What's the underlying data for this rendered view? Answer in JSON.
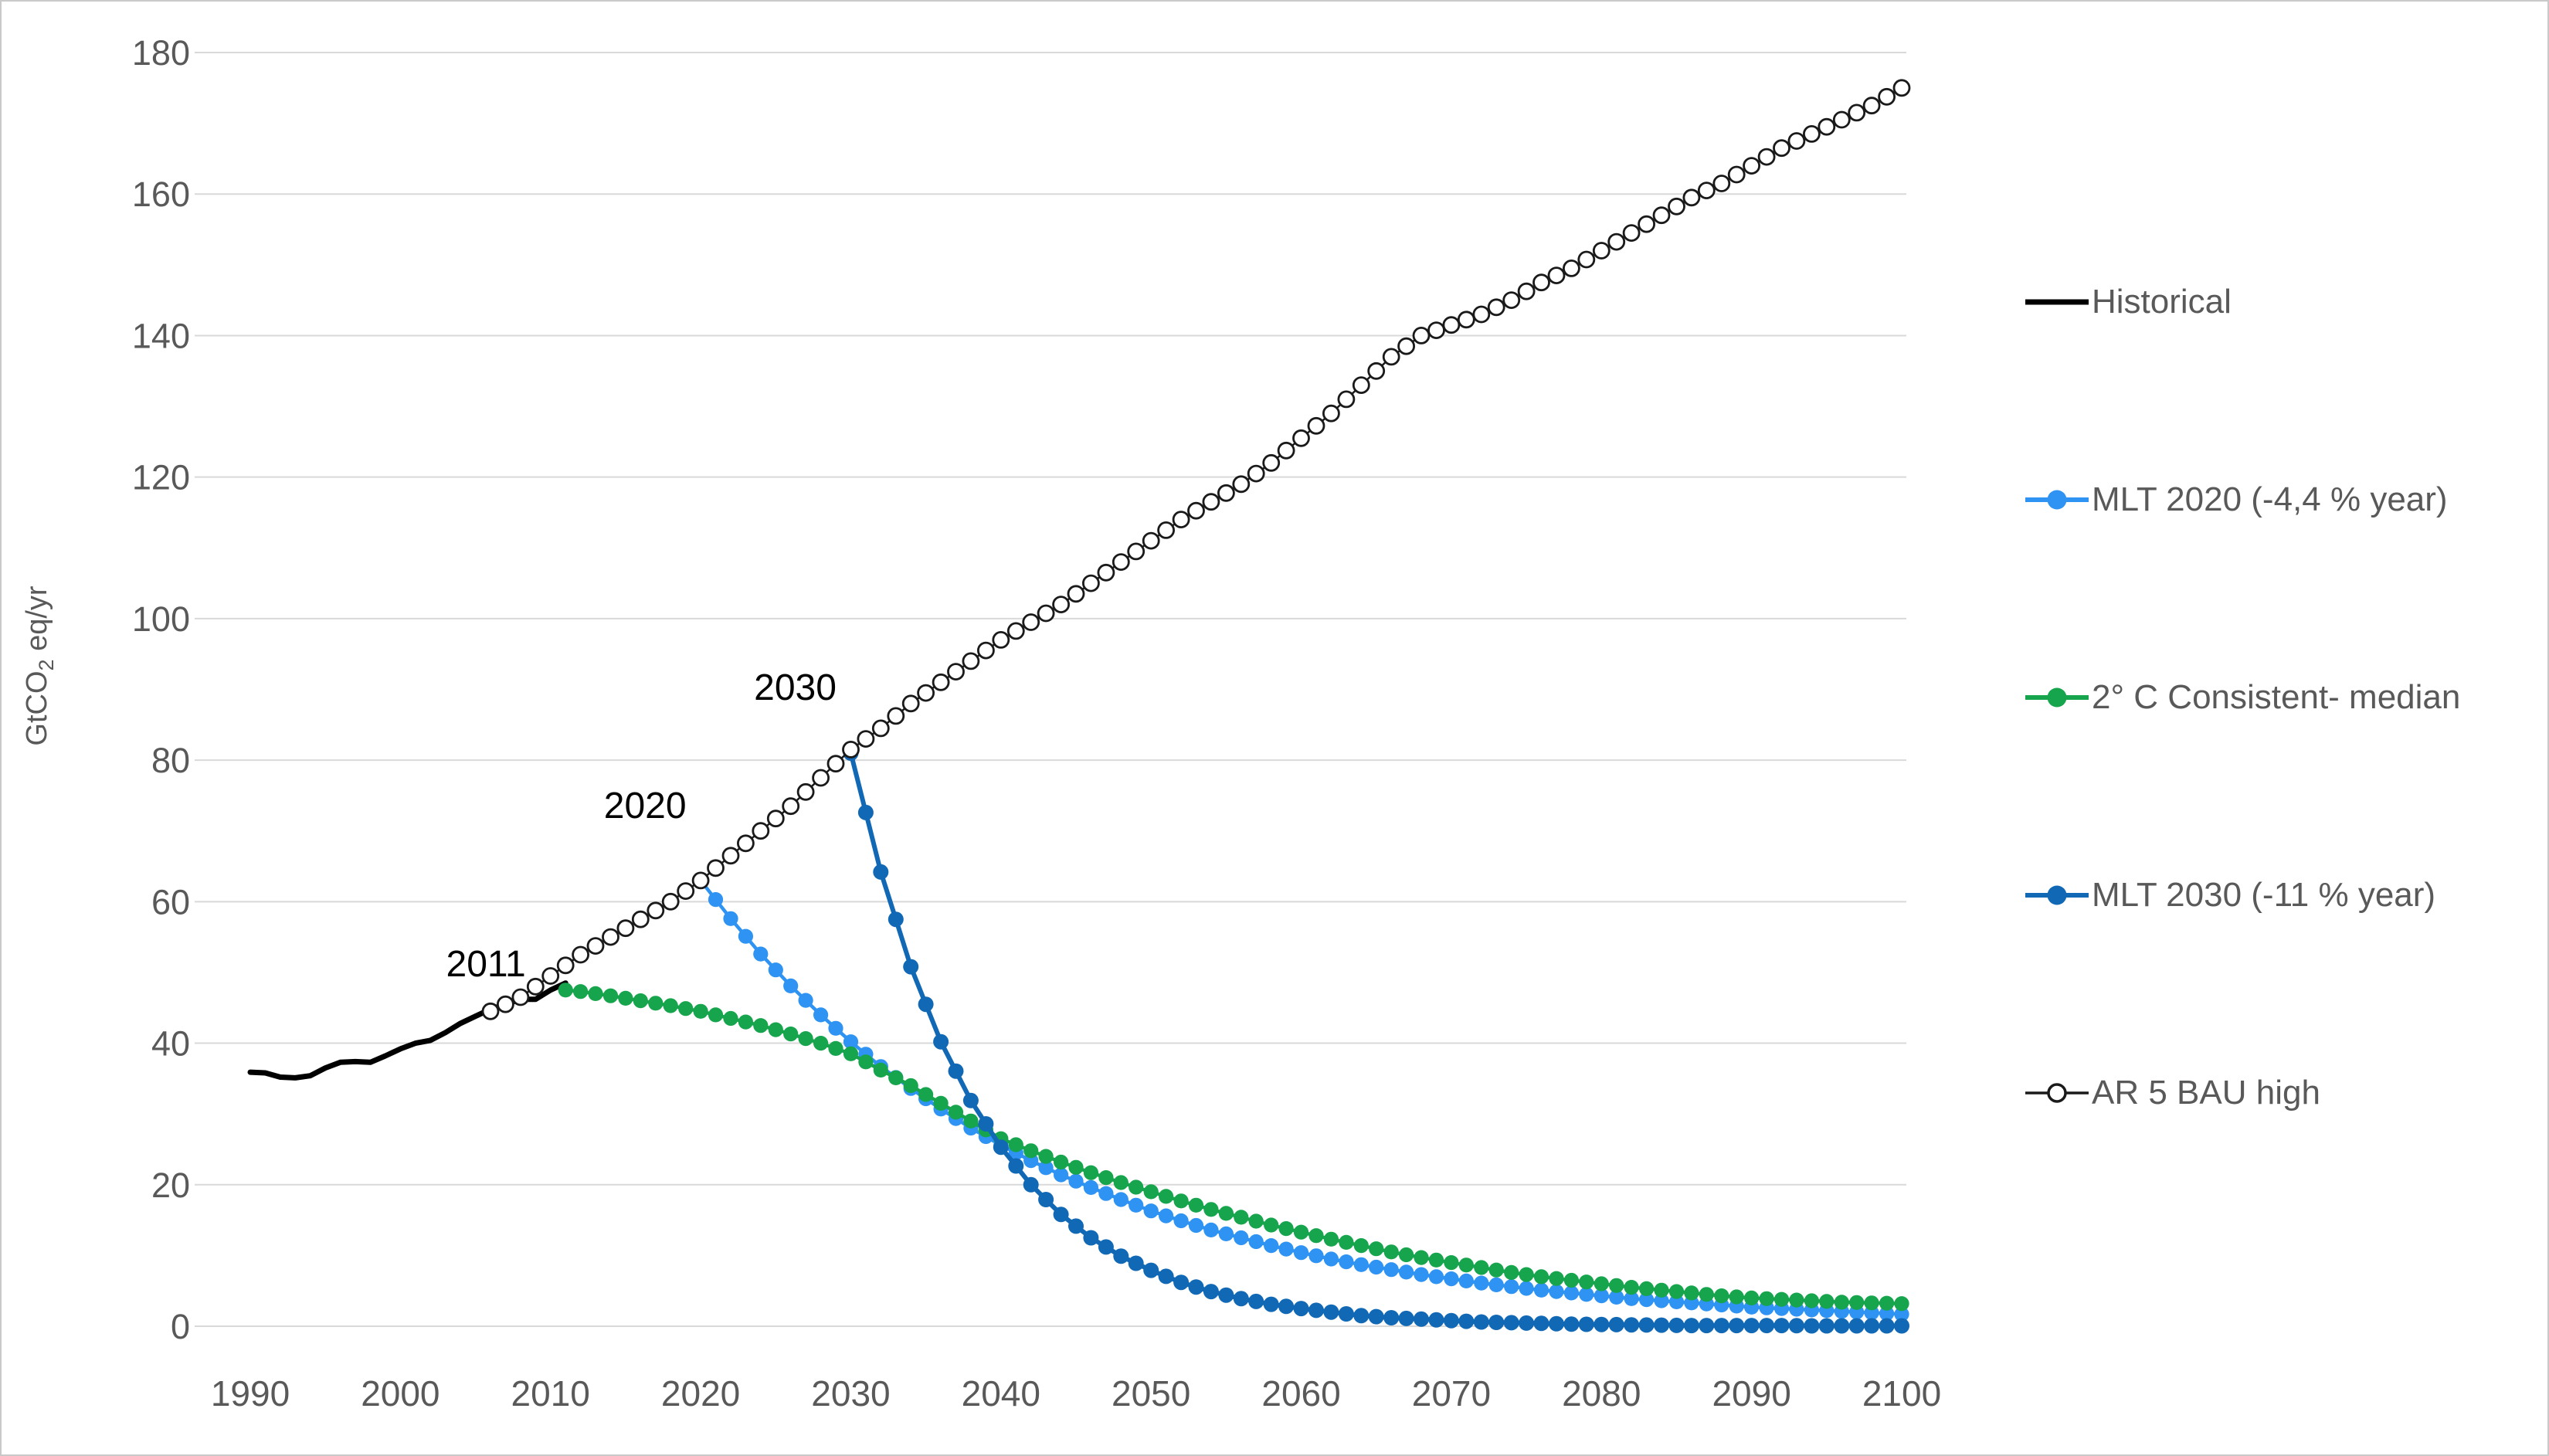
{
  "page": {
    "background": "#FFFFFF",
    "border_color": "#C9C9C9"
  },
  "colors": {
    "grid": "#D9D9D9",
    "tick_text": "#595959",
    "annotation_text": "#000000",
    "historical": "#000000",
    "mlt2020": "#2E93F2",
    "consistent2c": "#16A44C",
    "mlt2030": "#1168B5",
    "bau": "#1A1A1A"
  },
  "legend": {
    "items": [
      {
        "id": "historical",
        "label": "Historical",
        "color": "#000000",
        "marker": "line"
      },
      {
        "id": "mlt2020",
        "label": "MLT 2020 (-4,4 % year)",
        "color": "#2E93F2",
        "marker": "line-dot"
      },
      {
        "id": "consistent2c",
        "label": "2° C Consistent- median",
        "color": "#16A44C",
        "marker": "line-dot"
      },
      {
        "id": "mlt2030",
        "label": "MLT 2030 (-11 % year)",
        "color": "#1168B5",
        "marker": "line-dot"
      },
      {
        "id": "bau",
        "label": "AR 5 BAU high",
        "color": "#1A1A1A",
        "marker": "line-open-circle"
      }
    ]
  },
  "chart_data": {
    "type": "line",
    "title": "",
    "xlabel": "",
    "ylabel": "GtCO2 eq/yr",
    "ylabel_parts": {
      "pre": "GtCO",
      "sub": "2",
      "post": " eq/yr"
    },
    "xlim": [
      1990,
      2100
    ],
    "ylim": [
      0,
      180
    ],
    "x_ticks": [
      1990,
      2000,
      2010,
      2020,
      2030,
      2040,
      2050,
      2060,
      2070,
      2080,
      2090,
      2100
    ],
    "y_ticks": [
      0,
      20,
      40,
      60,
      80,
      100,
      120,
      140,
      160,
      180
    ],
    "grid": "horizontal",
    "legend_position": "right",
    "annotations": [
      {
        "text": "2011",
        "year": 2005.7,
        "value": 51.3
      },
      {
        "text": "2020",
        "year": 2016.3,
        "value": 73.7
      },
      {
        "text": "2030",
        "year": 2026.3,
        "value": 90.4
      }
    ],
    "series": [
      {
        "name": "Historical",
        "color_key": "historical",
        "style": "line",
        "line_width": 7,
        "annual_dots": false,
        "points": [
          [
            1990,
            35.9
          ],
          [
            1991,
            35.8
          ],
          [
            1992,
            35.2
          ],
          [
            1993,
            35.1
          ],
          [
            1994,
            35.4
          ],
          [
            1995,
            36.5
          ],
          [
            1996,
            37.3
          ],
          [
            1997,
            37.4
          ],
          [
            1998,
            37.3
          ],
          [
            1999,
            38.2
          ],
          [
            2000,
            39.2
          ],
          [
            2001,
            40.0
          ],
          [
            2002,
            40.4
          ],
          [
            2003,
            41.5
          ],
          [
            2004,
            42.8
          ],
          [
            2005,
            43.8
          ],
          [
            2006,
            44.8
          ],
          [
            2007,
            45.5
          ],
          [
            2008,
            46.2
          ],
          [
            2009,
            46.2
          ],
          [
            2010,
            47.5
          ],
          [
            2011,
            48.5
          ]
        ]
      },
      {
        "name": "MLT 2020 (-4,4 % year)",
        "color_key": "mlt2020",
        "style": "line-dots",
        "line_width": 4.5,
        "dot_radius": 9.6,
        "annual_dots": true,
        "points": [
          [
            2020,
            63
          ],
          [
            2022,
            57.6
          ],
          [
            2024,
            52.6
          ],
          [
            2026,
            48.1
          ],
          [
            2028,
            44
          ],
          [
            2030,
            40.2
          ],
          [
            2032,
            36.7
          ],
          [
            2034,
            33.6
          ],
          [
            2036,
            30.7
          ],
          [
            2038,
            28
          ],
          [
            2040,
            25.6
          ],
          [
            2042,
            23.4
          ],
          [
            2044,
            21.4
          ],
          [
            2046,
            19.6
          ],
          [
            2048,
            17.9
          ],
          [
            2050,
            16.3
          ],
          [
            2052,
            14.9
          ],
          [
            2054,
            13.6
          ],
          [
            2056,
            12.5
          ],
          [
            2058,
            11.4
          ],
          [
            2060,
            10.4
          ],
          [
            2062,
            9.5
          ],
          [
            2064,
            8.7
          ],
          [
            2066,
            8
          ],
          [
            2068,
            7.3
          ],
          [
            2070,
            6.7
          ],
          [
            2072,
            6.1
          ],
          [
            2074,
            5.6
          ],
          [
            2076,
            5.1
          ],
          [
            2078,
            4.7
          ],
          [
            2080,
            4.3
          ],
          [
            2082,
            3.9
          ],
          [
            2084,
            3.6
          ],
          [
            2086,
            3.3
          ],
          [
            2088,
            3
          ],
          [
            2090,
            2.7
          ],
          [
            2092,
            2.5
          ],
          [
            2094,
            2.3
          ],
          [
            2096,
            2.1
          ],
          [
            2098,
            1.9
          ],
          [
            2100,
            1.7
          ]
        ]
      },
      {
        "name": "2° C Consistent- median",
        "color_key": "consistent2c",
        "style": "line-dots",
        "line_width": 4.5,
        "dot_radius": 9.6,
        "annual_dots": true,
        "points": [
          [
            2011,
            47.5
          ],
          [
            2012,
            47.3
          ],
          [
            2014,
            46.7
          ],
          [
            2016,
            46
          ],
          [
            2018,
            45.3
          ],
          [
            2020,
            44.5
          ],
          [
            2022,
            43.5
          ],
          [
            2024,
            42.5
          ],
          [
            2026,
            41.3
          ],
          [
            2028,
            40
          ],
          [
            2030,
            38.5
          ],
          [
            2032,
            36.2
          ],
          [
            2034,
            34
          ],
          [
            2036,
            31.5
          ],
          [
            2038,
            29
          ],
          [
            2040,
            26.5
          ],
          [
            2042,
            24.8
          ],
          [
            2044,
            23.2
          ],
          [
            2046,
            21.7
          ],
          [
            2048,
            20.3
          ],
          [
            2050,
            19
          ],
          [
            2052,
            17.7
          ],
          [
            2054,
            16.5
          ],
          [
            2056,
            15.4
          ],
          [
            2058,
            14.3
          ],
          [
            2060,
            13.3
          ],
          [
            2062,
            12.3
          ],
          [
            2064,
            11.4
          ],
          [
            2066,
            10.5
          ],
          [
            2068,
            9.7
          ],
          [
            2070,
            9
          ],
          [
            2072,
            8.3
          ],
          [
            2074,
            7.6
          ],
          [
            2076,
            7
          ],
          [
            2078,
            6.5
          ],
          [
            2080,
            6
          ],
          [
            2082,
            5.5
          ],
          [
            2084,
            5.1
          ],
          [
            2086,
            4.7
          ],
          [
            2088,
            4.3
          ],
          [
            2090,
            4
          ],
          [
            2092,
            3.8
          ],
          [
            2094,
            3.6
          ],
          [
            2096,
            3.4
          ],
          [
            2098,
            3.3
          ],
          [
            2100,
            3.2
          ]
        ]
      },
      {
        "name": "MLT 2030 (-11 % year)",
        "color_key": "mlt2030",
        "style": "line-dots",
        "line_width": 6,
        "dot_radius": 10,
        "annual_dots": true,
        "points": [
          [
            2030,
            81
          ],
          [
            2032,
            64.2
          ],
          [
            2034,
            50.8
          ],
          [
            2036,
            40.2
          ],
          [
            2038,
            31.9
          ],
          [
            2040,
            25.3
          ],
          [
            2042,
            20
          ],
          [
            2044,
            15.8
          ],
          [
            2046,
            12.5
          ],
          [
            2048,
            9.9
          ],
          [
            2050,
            7.9
          ],
          [
            2052,
            6.2
          ],
          [
            2054,
            4.9
          ],
          [
            2056,
            3.9
          ],
          [
            2058,
            3.1
          ],
          [
            2060,
            2.5
          ],
          [
            2062,
            2
          ],
          [
            2064,
            1.5
          ],
          [
            2066,
            1.2
          ],
          [
            2068,
            1
          ],
          [
            2070,
            0.8
          ],
          [
            2072,
            0.6
          ],
          [
            2074,
            0.5
          ],
          [
            2076,
            0.4
          ],
          [
            2078,
            0.3
          ],
          [
            2080,
            0.25
          ],
          [
            2082,
            0.2
          ],
          [
            2084,
            0.15
          ],
          [
            2086,
            0.1
          ],
          [
            2088,
            0.1
          ],
          [
            2090,
            0.1
          ],
          [
            2092,
            0.1
          ],
          [
            2094,
            0.05
          ],
          [
            2096,
            0.05
          ],
          [
            2098,
            0.05
          ],
          [
            2100,
            0.05
          ]
        ]
      },
      {
        "name": "AR 5 BAU high",
        "color_key": "bau",
        "style": "line-open-circles",
        "line_width": 2.5,
        "dot_radius": 10,
        "dot_stroke": 2.8,
        "annual_dots": true,
        "points": [
          [
            2006,
            44.5
          ],
          [
            2008,
            46.5
          ],
          [
            2010,
            49.5
          ],
          [
            2012,
            52.5
          ],
          [
            2014,
            55
          ],
          [
            2016,
            57.5
          ],
          [
            2018,
            60
          ],
          [
            2020,
            63
          ],
          [
            2022,
            66.5
          ],
          [
            2024,
            70
          ],
          [
            2026,
            73.5
          ],
          [
            2028,
            77.5
          ],
          [
            2030,
            81.5
          ],
          [
            2032,
            84.5
          ],
          [
            2034,
            88
          ],
          [
            2036,
            91
          ],
          [
            2038,
            94
          ],
          [
            2040,
            97
          ],
          [
            2042,
            99.5
          ],
          [
            2044,
            102
          ],
          [
            2046,
            105
          ],
          [
            2048,
            108
          ],
          [
            2050,
            111
          ],
          [
            2052,
            114
          ],
          [
            2054,
            116.5
          ],
          [
            2056,
            119
          ],
          [
            2058,
            122
          ],
          [
            2060,
            125.5
          ],
          [
            2062,
            129
          ],
          [
            2064,
            133
          ],
          [
            2066,
            137
          ],
          [
            2068,
            140
          ],
          [
            2070,
            141.5
          ],
          [
            2072,
            143
          ],
          [
            2074,
            145
          ],
          [
            2076,
            147.5
          ],
          [
            2078,
            149.5
          ],
          [
            2080,
            152
          ],
          [
            2082,
            154.5
          ],
          [
            2084,
            157
          ],
          [
            2086,
            159.5
          ],
          [
            2088,
            161.5
          ],
          [
            2090,
            164
          ],
          [
            2092,
            166.5
          ],
          [
            2094,
            168.5
          ],
          [
            2096,
            170.5
          ],
          [
            2098,
            172.5
          ],
          [
            2100,
            175
          ]
        ]
      }
    ]
  }
}
